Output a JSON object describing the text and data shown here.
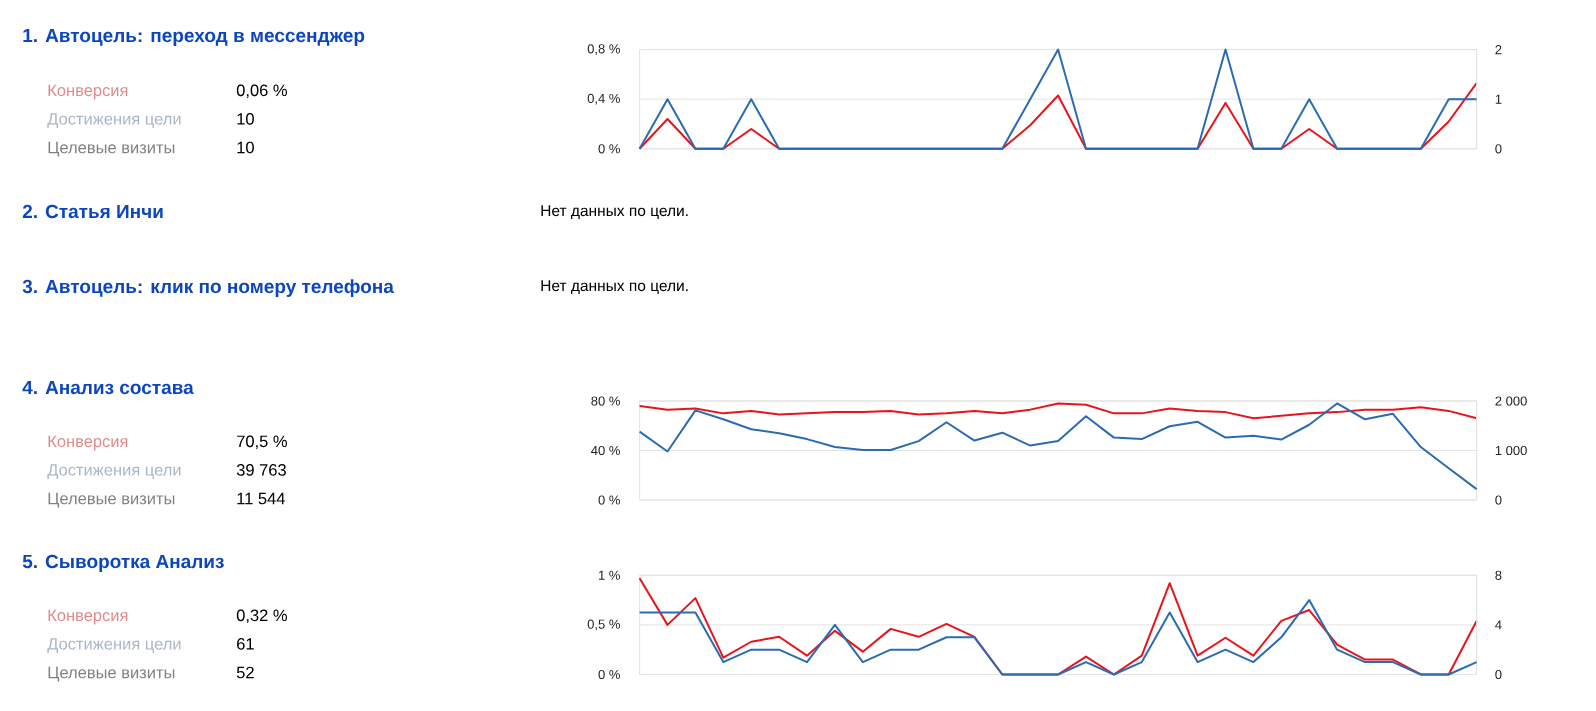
{
  "chart_data": [
    {
      "type": "other",
      "title": "1. Автоцель: переход в мессенджер",
      "annotations": [
        "Конверсия",
        "0,06 %",
        "Достижения цели",
        "10",
        "Целевые визиты",
        "10"
      ]
    },
    {
      "type": "line",
      "categories": [
        null,
        null,
        null,
        null,
        null,
        null,
        null,
        null,
        null,
        null,
        null,
        null,
        null,
        null,
        null,
        null,
        null,
        null,
        null,
        null,
        null,
        null,
        null,
        null,
        null,
        null,
        null,
        null,
        null,
        null,
        null
      ],
      "series": [
        {
          "color": "#e8141c",
          "values": [
            0,
            0.24,
            0,
            0,
            0.16,
            0,
            0,
            0,
            0,
            0,
            0,
            0,
            0,
            0,
            0.19,
            0.43,
            0,
            0,
            0,
            0,
            0,
            0.37,
            0,
            0,
            0.16,
            0,
            0,
            0,
            0,
            0.22,
            0.53
          ]
        },
        {
          "color": "#2b6cb0",
          "axis": "y2",
          "values": [
            0,
            1,
            0,
            0,
            1,
            0,
            0,
            0,
            0,
            0,
            0,
            0,
            0,
            0,
            1,
            2,
            0,
            0,
            0,
            0,
            0,
            2,
            0,
            0,
            1,
            0,
            0,
            0,
            0,
            1,
            1
          ]
        }
      ],
      "ylim": [
        0,
        0.8
      ],
      "yticks": [
        {
          "value": 0,
          "label": "0 %"
        },
        {
          "value": 0.4,
          "label": "0,4 %"
        },
        {
          "value": 0.8,
          "label": "0,8 %"
        }
      ],
      "y2lim": [
        0,
        2
      ],
      "y2ticks": [
        0,
        1,
        2
      ],
      "grid": "y"
    },
    {
      "type": "other",
      "title": "2. Статья Инчи",
      "annotations": [
        "Нет данных по цели."
      ]
    },
    {
      "type": "other",
      "title": "3. Автоцель: клик по номеру телефона",
      "annotations": [
        "Нет данных по цели."
      ]
    },
    {
      "type": "other",
      "title": "4. Анализ состава",
      "annotations": [
        "Конверсия",
        "70,5 %",
        "Достижения цели",
        "39 763",
        "Целевые визиты",
        "11 544"
      ]
    },
    {
      "type": "line",
      "categories": [
        null,
        null,
        null,
        null,
        null,
        null,
        null,
        null,
        null,
        null,
        null,
        null,
        null,
        null,
        null,
        null,
        null,
        null,
        null,
        null,
        null,
        null,
        null,
        null,
        null,
        null,
        null,
        null,
        null,
        null,
        null
      ],
      "series": [
        {
          "color": "#e8141c",
          "values": [
            76,
            73,
            74,
            70,
            72,
            69,
            70,
            71,
            71,
            72,
            69,
            70,
            72,
            70,
            73,
            78,
            77,
            70,
            70,
            74,
            72,
            71,
            66,
            68,
            70,
            71,
            73,
            73,
            75,
            72,
            66
          ]
        },
        {
          "color": "#2b6cb0",
          "axis": "y2",
          "values": [
            1380,
            980,
            1810,
            1630,
            1430,
            1350,
            1230,
            1070,
            1010,
            1010,
            1190,
            1570,
            1200,
            1360,
            1100,
            1190,
            1690,
            1260,
            1230,
            1490,
            1580,
            1260,
            1300,
            1220,
            1520,
            1950,
            1630,
            1740,
            1070,
            640,
            220
          ]
        }
      ],
      "ylim": [
        0,
        80
      ],
      "yticks": [
        {
          "value": 0,
          "label": "0 %"
        },
        {
          "value": 40,
          "label": "40 %"
        },
        {
          "value": 80,
          "label": "80 %"
        }
      ],
      "y2lim": [
        0,
        2000
      ],
      "y2ticks": [
        0,
        {
          "value": 1000,
          "label": "1 000"
        },
        {
          "value": 2000,
          "label": "2 000"
        }
      ],
      "grid": "y"
    },
    {
      "type": "other",
      "title": "5. Сыворотка Анализ",
      "annotations": [
        "Конверсия",
        "0,32 %",
        "Достижения цели",
        "61",
        "Целевые визиты",
        "52"
      ]
    },
    {
      "type": "line",
      "categories": [
        null,
        null,
        null,
        null,
        null,
        null,
        null,
        null,
        null,
        null,
        null,
        null,
        null,
        null,
        null,
        null,
        null,
        null,
        null,
        null,
        null,
        null,
        null,
        null,
        null,
        null,
        null,
        null,
        null,
        null,
        null
      ],
      "series": [
        {
          "color": "#e8141c",
          "values": [
            0.97,
            0.5,
            0.77,
            0.17,
            0.33,
            0.38,
            0.19,
            0.44,
            0.23,
            0.46,
            0.38,
            0.51,
            0.38,
            0,
            0,
            0,
            0.18,
            0,
            0.19,
            0.92,
            0.19,
            0.37,
            0.19,
            0.54,
            0.65,
            0.3,
            0.15,
            0.15,
            0,
            0,
            0.54
          ]
        },
        {
          "color": "#2b6cb0",
          "axis": "y2",
          "values": [
            5,
            5,
            5,
            1,
            2,
            2,
            1,
            4,
            1,
            2,
            2,
            3,
            3,
            0,
            0,
            0,
            1,
            0,
            1,
            5,
            1,
            2,
            1,
            3,
            6,
            2,
            1,
            1,
            0,
            0,
            1
          ]
        }
      ],
      "ylim": [
        0,
        1
      ],
      "yticks": [
        {
          "value": 0,
          "label": "0 %"
        },
        {
          "value": 0.5,
          "label": "0,5 %"
        },
        {
          "value": 1,
          "label": "1 %"
        }
      ],
      "y2lim": [
        0,
        8
      ],
      "y2ticks": [
        0,
        4,
        8
      ],
      "grid": "y"
    }
  ]
}
